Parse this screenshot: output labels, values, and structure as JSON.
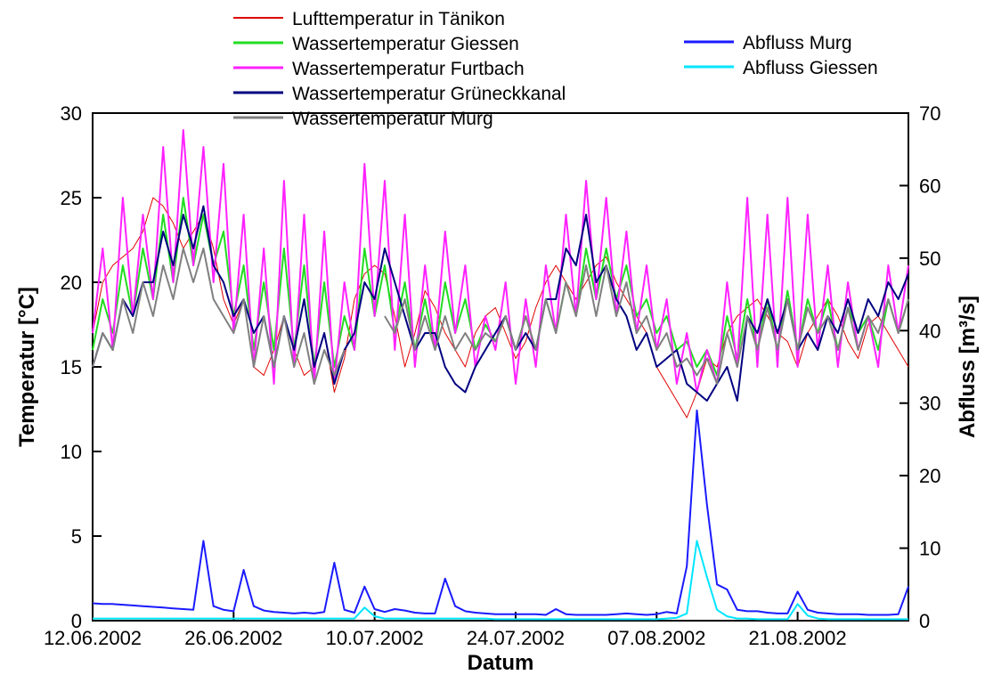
{
  "chart_data": {
    "type": "line",
    "x_label": "Datum",
    "y_label": "Temperatur [°C]",
    "y2_label": "Abfluss [m³/s]",
    "x": [
      "2002-06-12",
      "2002-06-13",
      "2002-06-14",
      "2002-06-15",
      "2002-06-16",
      "2002-06-17",
      "2002-06-18",
      "2002-06-19",
      "2002-06-20",
      "2002-06-21",
      "2002-06-22",
      "2002-06-23",
      "2002-06-24",
      "2002-06-25",
      "2002-06-26",
      "2002-06-27",
      "2002-06-28",
      "2002-06-29",
      "2002-06-30",
      "2002-07-01",
      "2002-07-02",
      "2002-07-03",
      "2002-07-04",
      "2002-07-05",
      "2002-07-06",
      "2002-07-07",
      "2002-07-08",
      "2002-07-09",
      "2002-07-10",
      "2002-07-11",
      "2002-07-12",
      "2002-07-13",
      "2002-07-14",
      "2002-07-15",
      "2002-07-16",
      "2002-07-17",
      "2002-07-18",
      "2002-07-19",
      "2002-07-20",
      "2002-07-21",
      "2002-07-22",
      "2002-07-23",
      "2002-07-24",
      "2002-07-25",
      "2002-07-26",
      "2002-07-27",
      "2002-07-28",
      "2002-07-29",
      "2002-07-30",
      "2002-07-31",
      "2002-08-01",
      "2002-08-02",
      "2002-08-03",
      "2002-08-04",
      "2002-08-05",
      "2002-08-06",
      "2002-08-07",
      "2002-08-08",
      "2002-08-09",
      "2002-08-10",
      "2002-08-11",
      "2002-08-12",
      "2002-08-13",
      "2002-08-14",
      "2002-08-15",
      "2002-08-16",
      "2002-08-17",
      "2002-08-18",
      "2002-08-19",
      "2002-08-20",
      "2002-08-21",
      "2002-08-22",
      "2002-08-23",
      "2002-08-24",
      "2002-08-25",
      "2002-08-26",
      "2002-08-27",
      "2002-08-28",
      "2002-08-29",
      "2002-08-30",
      "2002-08-31",
      "2002-09-01"
    ],
    "xlim": [
      "2002-06-12",
      "2002-09-01"
    ],
    "xticks": [
      {
        "value": "2002-06-12",
        "label": "12.06.2002"
      },
      {
        "value": "2002-06-26",
        "label": "26.06.2002"
      },
      {
        "value": "2002-07-10",
        "label": "10.07.2002"
      },
      {
        "value": "2002-07-24",
        "label": "24.07.2002"
      },
      {
        "value": "2002-08-07",
        "label": "07.08.2002"
      },
      {
        "value": "2002-08-21",
        "label": "21.08.2002"
      }
    ],
    "ylim": [
      0,
      30
    ],
    "yticks": [
      0,
      5,
      10,
      15,
      20,
      25,
      30
    ],
    "y2lim": [
      0,
      70
    ],
    "y2ticks": [
      0,
      10,
      20,
      30,
      40,
      50,
      60,
      70
    ],
    "series": [
      {
        "name": "Lufttemperatur in Tänikon",
        "color": "#e00000",
        "width": 1,
        "values": [
          17,
          20,
          21,
          21.5,
          22,
          23,
          25,
          24.5,
          23.5,
          22,
          23,
          24,
          22,
          19,
          17.5,
          19,
          15,
          14.5,
          16,
          18,
          16,
          14.5,
          15,
          17,
          13.5,
          15.5,
          19,
          20.5,
          21,
          20.5,
          18,
          15,
          17,
          19.5,
          18.5,
          17,
          16,
          15,
          17,
          18,
          18.5,
          17,
          15.5,
          16.5,
          18.5,
          20,
          21,
          20,
          19,
          20,
          21,
          21.5,
          20,
          19,
          18,
          17,
          15,
          14,
          13,
          12,
          13.5,
          15.5,
          15,
          17,
          18,
          18.5,
          19,
          18,
          17,
          16.5,
          15,
          17,
          18,
          19,
          18,
          16.5,
          15.5,
          17.5,
          18,
          17,
          16,
          15
        ]
      },
      {
        "name": "Wassertemperatur Giessen",
        "color": "#22dd22",
        "width": 2,
        "values": [
          16,
          19,
          17,
          21,
          18,
          22,
          19,
          24,
          20,
          25,
          21,
          24,
          21,
          23,
          18,
          21,
          16,
          20,
          16,
          22,
          16,
          21,
          15,
          20,
          15,
          18,
          16,
          22,
          18,
          21,
          17,
          20,
          16,
          19,
          16,
          20,
          17,
          19,
          16,
          17.5,
          16.5,
          18,
          16,
          18,
          16,
          19,
          17,
          20,
          18,
          22,
          19,
          22,
          19,
          21,
          18,
          19,
          17,
          18,
          16,
          16.5,
          15,
          16,
          14.5,
          18,
          15.5,
          19,
          16,
          19,
          16,
          19.5,
          16,
          19,
          17,
          19,
          16,
          18.5,
          17,
          18,
          16,
          19,
          17,
          19
        ]
      },
      {
        "name": "Wassertemperatur Furtbach",
        "color": "#ff22ff",
        "width": 2,
        "values": [
          17,
          22,
          16,
          25,
          18,
          24,
          19,
          28,
          20,
          29,
          21,
          28,
          20,
          27,
          17,
          24,
          15,
          22,
          14,
          26,
          15,
          24,
          14,
          23,
          14,
          20,
          16,
          27,
          18,
          26,
          16,
          24,
          15,
          21,
          16,
          23,
          17,
          21,
          15,
          18,
          16,
          20,
          14,
          19,
          15,
          21,
          17,
          24,
          18,
          26,
          19,
          25,
          18,
          23,
          17,
          21,
          16,
          19,
          14,
          17,
          13.5,
          16,
          14,
          20,
          15,
          25,
          15,
          24,
          15,
          25,
          15,
          24,
          16,
          21,
          15,
          20,
          16,
          18,
          15,
          21,
          17,
          21
        ]
      },
      {
        "name": "Wassertemperatur Grüneckkanal",
        "color": "#000080",
        "width": 2,
        "values": [
          15,
          17,
          16,
          19,
          18,
          20,
          20,
          23,
          21,
          24,
          22,
          24.5,
          21,
          20,
          18,
          19,
          17,
          18,
          15,
          18,
          16,
          19,
          15,
          17,
          14,
          16,
          17,
          20,
          19,
          22,
          20,
          18,
          16,
          17,
          17,
          15,
          14,
          13.5,
          15,
          16,
          17,
          18,
          16,
          17,
          16,
          19,
          19,
          22,
          21,
          24,
          20,
          21,
          19,
          18,
          16,
          17,
          15,
          15.5,
          16,
          14,
          13.5,
          13,
          14,
          15,
          13,
          18,
          17,
          19,
          17,
          19,
          16,
          17,
          16,
          18,
          17,
          19,
          17,
          19,
          18,
          20,
          19,
          20.5
        ]
      },
      {
        "name": "Wassertemperatur Murg",
        "color": "#808080",
        "width": 2,
        "values": [
          15,
          17,
          16,
          19,
          17,
          20,
          18,
          21,
          19,
          22,
          20,
          22,
          19,
          18,
          17,
          19,
          15,
          18,
          15,
          18,
          15,
          17,
          14,
          16,
          14.5,
          16,
          null,
          null,
          null,
          18,
          17,
          19,
          16,
          18,
          16,
          18,
          16,
          17,
          16,
          17,
          16.5,
          18,
          16,
          18,
          16,
          19,
          17,
          20,
          18,
          21,
          18,
          21,
          18,
          20,
          17,
          18,
          16,
          17,
          15,
          15.5,
          14.5,
          15.5,
          14,
          17,
          15,
          18,
          16,
          18.5,
          16,
          19,
          16,
          18.5,
          17,
          18,
          16,
          18.5,
          16,
          18,
          17,
          19,
          17,
          19
        ]
      },
      {
        "name": "Abfluss Murg",
        "color": "#1a1aff",
        "width": 2,
        "axis": "y2",
        "values": [
          2.4,
          2.3,
          2.3,
          2.2,
          2.1,
          2.0,
          1.9,
          1.8,
          1.7,
          1.6,
          1.5,
          11,
          2.0,
          1.5,
          1.3,
          7.0,
          2.0,
          1.4,
          1.2,
          1.1,
          1.0,
          1.1,
          1.0,
          1.2,
          8.0,
          1.5,
          1.1,
          4.7,
          1.6,
          1.2,
          1.6,
          1.4,
          1.1,
          1.0,
          1.0,
          5.8,
          2.0,
          1.3,
          1.1,
          1.0,
          0.9,
          0.9,
          0.9,
          0.9,
          0.9,
          0.8,
          1.6,
          0.9,
          0.8,
          0.8,
          0.8,
          0.8,
          0.9,
          1.0,
          0.9,
          0.8,
          0.9,
          1.2,
          1.0,
          7.5,
          29,
          16,
          5,
          4.3,
          1.5,
          1.3,
          1.3,
          1.1,
          1.0,
          1.0,
          4.0,
          1.5,
          1.1,
          1.0,
          0.9,
          0.9,
          0.9,
          0.8,
          0.8,
          0.8,
          0.9,
          4.7
        ]
      },
      {
        "name": "Abfluss Giessen",
        "color": "#00e5ff",
        "width": 2,
        "axis": "y2",
        "values": [
          0.3,
          0.3,
          0.3,
          0.3,
          0.3,
          0.3,
          0.3,
          0.3,
          0.3,
          0.3,
          0.3,
          0.3,
          0.3,
          0.3,
          0.3,
          0.3,
          0.3,
          0.3,
          0.3,
          0.3,
          0.3,
          0.3,
          0.3,
          0.3,
          0.3,
          0.3,
          0.3,
          1.8,
          0.6,
          0.3,
          0.3,
          0.3,
          0.3,
          0.3,
          0.3,
          0.3,
          0.3,
          0.3,
          0.3,
          0.3,
          0.2,
          0.2,
          0.2,
          0.2,
          0.2,
          0.2,
          0.2,
          0.2,
          0.2,
          0.2,
          0.2,
          0.2,
          0.2,
          0.2,
          0.2,
          0.2,
          0.2,
          0.3,
          0.4,
          1.0,
          11,
          6,
          1.5,
          0.6,
          0.3,
          0.3,
          0.2,
          0.2,
          0.2,
          0.2,
          2.3,
          0.7,
          0.3,
          0.2,
          0.2,
          0.2,
          0.2,
          0.2,
          0.2,
          0.2,
          0.2,
          0.2
        ]
      }
    ]
  }
}
